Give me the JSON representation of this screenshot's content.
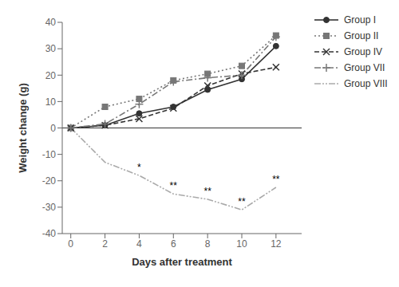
{
  "chart_data": {
    "type": "line",
    "xlabel": "Days after treatment",
    "ylabel": "Weight change (g)",
    "x": [
      0,
      2,
      4,
      6,
      8,
      10,
      12
    ],
    "series": [
      {
        "name": "Group I",
        "color": "#333333",
        "line_style": "solid",
        "marker": "circle",
        "values": [
          0,
          1.0,
          5.5,
          8.0,
          14.5,
          18.5,
          31.0
        ]
      },
      {
        "name": "Group II",
        "color": "#777777",
        "line_style": "dotted",
        "marker": "square",
        "values": [
          0,
          8.0,
          11.0,
          18.0,
          20.5,
          23.5,
          35.0
        ]
      },
      {
        "name": "Group IV",
        "color": "#333333",
        "line_style": "dashed",
        "marker": "x",
        "values": [
          0,
          1.0,
          3.5,
          7.5,
          16.0,
          20.5,
          23.0
        ]
      },
      {
        "name": "Group VII",
        "color": "#777777",
        "line_style": "dashdot",
        "marker": "plus",
        "values": [
          0,
          1.5,
          9.0,
          17.5,
          19.0,
          20.0,
          34.5
        ]
      },
      {
        "name": "Group VIII",
        "color": "#aaaaaa",
        "line_style": "dashdotdot",
        "marker": "none",
        "values": [
          0,
          -13.0,
          -18.0,
          -25.0,
          -27.0,
          -31.0,
          -22.5
        ]
      }
    ],
    "annotations": [
      {
        "text": "*",
        "x": 4,
        "y": -18.0
      },
      {
        "text": "**",
        "x": 6,
        "y": -25.0
      },
      {
        "text": "**",
        "x": 8,
        "y": -27.0
      },
      {
        "text": "**",
        "x": 10,
        "y": -31.0
      },
      {
        "text": "**",
        "x": 12,
        "y": -22.5
      }
    ],
    "hlines": [
      0
    ],
    "xlim": [
      -0.5,
      13.5
    ],
    "xticks": [
      0,
      2,
      4,
      6,
      8,
      10,
      12
    ],
    "ylim": [
      -40,
      40
    ],
    "yticks": [
      -40,
      -30,
      -20,
      -10,
      0,
      10,
      20,
      30,
      40
    ],
    "grid": false,
    "legend": "upper right"
  }
}
